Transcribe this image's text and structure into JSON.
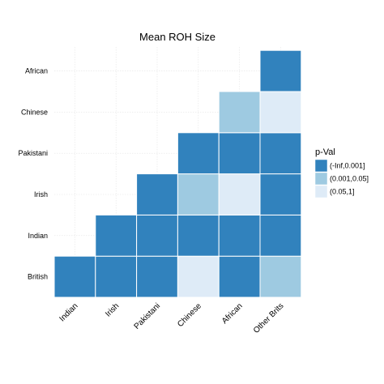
{
  "chart_data": {
    "type": "heatmap",
    "title": "Mean ROH Size",
    "x_categories": [
      "Indian",
      "Irish",
      "Pakistani",
      "Chinese",
      "African",
      "Other Brits"
    ],
    "y_categories": [
      "British",
      "Indian",
      "Irish",
      "Pakistani",
      "Chinese",
      "African"
    ],
    "legend": {
      "title": "p-Val",
      "position": "right",
      "levels": [
        {
          "label": "(-Inf,0.001]",
          "color": "#3182bd"
        },
        {
          "label": "(0.001,0.05]",
          "color": "#9ecae1"
        },
        {
          "label": "(0.05,1]",
          "color": "#deebf7"
        }
      ]
    },
    "grid": true,
    "cells": [
      {
        "x": "Indian",
        "y": "British",
        "level": "(-Inf,0.001]"
      },
      {
        "x": "Irish",
        "y": "British",
        "level": "(-Inf,0.001]"
      },
      {
        "x": "Pakistani",
        "y": "British",
        "level": "(-Inf,0.001]"
      },
      {
        "x": "Chinese",
        "y": "British",
        "level": "(0.05,1]"
      },
      {
        "x": "African",
        "y": "British",
        "level": "(-Inf,0.001]"
      },
      {
        "x": "Other Brits",
        "y": "British",
        "level": "(0.001,0.05]"
      },
      {
        "x": "Irish",
        "y": "Indian",
        "level": "(-Inf,0.001]"
      },
      {
        "x": "Pakistani",
        "y": "Indian",
        "level": "(-Inf,0.001]"
      },
      {
        "x": "Chinese",
        "y": "Indian",
        "level": "(-Inf,0.001]"
      },
      {
        "x": "African",
        "y": "Indian",
        "level": "(-Inf,0.001]"
      },
      {
        "x": "Other Brits",
        "y": "Indian",
        "level": "(-Inf,0.001]"
      },
      {
        "x": "Pakistani",
        "y": "Irish",
        "level": "(-Inf,0.001]"
      },
      {
        "x": "Chinese",
        "y": "Irish",
        "level": "(0.001,0.05]"
      },
      {
        "x": "African",
        "y": "Irish",
        "level": "(0.05,1]"
      },
      {
        "x": "Other Brits",
        "y": "Irish",
        "level": "(-Inf,0.001]"
      },
      {
        "x": "Chinese",
        "y": "Pakistani",
        "level": "(-Inf,0.001]"
      },
      {
        "x": "African",
        "y": "Pakistani",
        "level": "(-Inf,0.001]"
      },
      {
        "x": "Other Brits",
        "y": "Pakistani",
        "level": "(-Inf,0.001]"
      },
      {
        "x": "African",
        "y": "Chinese",
        "level": "(0.001,0.05]"
      },
      {
        "x": "Other Brits",
        "y": "Chinese",
        "level": "(0.05,1]"
      },
      {
        "x": "Other Brits",
        "y": "African",
        "level": "(-Inf,0.001]"
      }
    ]
  }
}
